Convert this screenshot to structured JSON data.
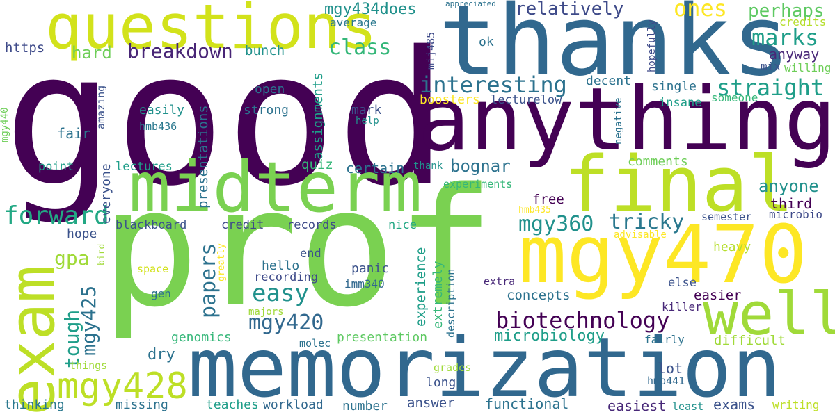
{
  "words": [
    {
      "key": "good",
      "text": "good",
      "color": "#440154"
    },
    {
      "key": "prof",
      "text": "prof",
      "color": "#7ad151"
    },
    {
      "key": "thanks",
      "text": "thanks",
      "color": "#31688e"
    },
    {
      "key": "anything",
      "text": "anything",
      "color": "#440154"
    },
    {
      "key": "memorization",
      "text": "memorization",
      "color": "#31688e"
    },
    {
      "key": "midterm",
      "text": "midterm",
      "color": "#7ad151"
    },
    {
      "key": "questions",
      "text": "questions",
      "color": "#d2e21b"
    },
    {
      "key": "final",
      "text": "final",
      "color": "#bddf26"
    },
    {
      "key": "mgy470",
      "text": "mgy470",
      "color": "#fde725"
    },
    {
      "key": "exam",
      "text": "exam",
      "color": "#bddf26"
    },
    {
      "key": "well",
      "text": "well",
      "color": "#a0da39"
    },
    {
      "key": "mgy428",
      "text": "mgy428",
      "color": "#bddf26"
    },
    {
      "key": "forward",
      "text": "forward",
      "color": "#22a884"
    },
    {
      "key": "interesting",
      "text": "interesting",
      "color": "#2c728e"
    },
    {
      "key": "straight",
      "text": "straight",
      "color": "#1f9e89"
    },
    {
      "key": "marks",
      "text": "marks",
      "color": "#1f9e89"
    },
    {
      "key": "biotechnology",
      "text": "biotechnology",
      "color": "#440154"
    },
    {
      "key": "mgy420",
      "text": "mgy420",
      "color": "#31688e"
    },
    {
      "key": "mgy360",
      "text": "mgy360",
      "color": "#21918c"
    },
    {
      "key": "tricky",
      "text": "tricky",
      "color": "#2a788e"
    },
    {
      "key": "breakdown",
      "text": "breakdown",
      "color": "#482576"
    },
    {
      "key": "class",
      "text": "class",
      "color": "#35b779"
    },
    {
      "key": "relatively",
      "text": "relatively",
      "color": "#3e4a89"
    },
    {
      "key": "ones",
      "text": "ones",
      "color": "#fde725"
    },
    {
      "key": "perhaps",
      "text": "perhaps",
      "color": "#5ec962"
    },
    {
      "key": "mgy434does",
      "text": "mgy434does",
      "color": "#21918c"
    },
    {
      "key": "hard",
      "text": "hard",
      "color": "#6ece58"
    },
    {
      "key": "https",
      "text": "https",
      "color": "#3e4a89"
    },
    {
      "key": "bunch",
      "text": "bunch",
      "color": "#21918c"
    },
    {
      "key": "average",
      "text": "average",
      "color": "#2a788e"
    },
    {
      "key": "appreciated",
      "text": "appreciated",
      "color": "#2c728e"
    },
    {
      "key": "credits",
      "text": "credits",
      "color": "#b5de2b"
    },
    {
      "key": "anyway",
      "text": "anyway",
      "color": "#482878"
    },
    {
      "key": "mix",
      "text": "mix",
      "color": "#3b528b"
    },
    {
      "key": "willing",
      "text": "willing",
      "color": "#6ece58"
    },
    {
      "key": "ok",
      "text": "ok",
      "color": "#2c728e"
    },
    {
      "key": "bognar",
      "text": "bognar",
      "color": "#2c728e"
    },
    {
      "key": "certain",
      "text": "certain",
      "color": "#2c728e"
    },
    {
      "key": "quiz",
      "text": "quiz",
      "color": "#35b779"
    },
    {
      "key": "comments",
      "text": "comments",
      "color": "#6ece58"
    },
    {
      "key": "anyone",
      "text": "anyone",
      "color": "#21918c"
    },
    {
      "key": "third",
      "text": "third",
      "color": "#440154"
    },
    {
      "key": "microbio",
      "text": "microbio",
      "color": "#3e4a89"
    },
    {
      "key": "semester",
      "text": "semester",
      "color": "#3b528b"
    },
    {
      "key": "easy",
      "text": "easy",
      "color": "#21918c"
    },
    {
      "key": "papers",
      "text": "papers",
      "color": "#2c728e"
    },
    {
      "key": "tough",
      "text": "tough",
      "color": "#1f9e89"
    },
    {
      "key": "gpa",
      "text": "gpa",
      "color": "#a0da39"
    },
    {
      "key": "open",
      "text": "open",
      "color": "#2c728e"
    },
    {
      "key": "strong",
      "text": "strong",
      "color": "#2c728e"
    },
    {
      "key": "mark",
      "text": "mark",
      "color": "#3b528b"
    },
    {
      "key": "help",
      "text": "help",
      "color": "#21918c"
    },
    {
      "key": "easily",
      "text": "easily",
      "color": "#21918c"
    },
    {
      "key": "hmb436",
      "text": "hmb436",
      "color": "#2a788e"
    },
    {
      "key": "fair",
      "text": "fair",
      "color": "#2c728e"
    },
    {
      "key": "point",
      "text": "point",
      "color": "#1f9e89"
    },
    {
      "key": "lectures",
      "text": "lectures",
      "color": "#1f9e89"
    },
    {
      "key": "blackboard",
      "text": "blackboard",
      "color": "#3b528b"
    },
    {
      "key": "credit",
      "text": "credit",
      "color": "#3e4a89"
    },
    {
      "key": "records",
      "text": "records",
      "color": "#3e4a89"
    },
    {
      "key": "nice",
      "text": "nice",
      "color": "#22a884"
    },
    {
      "key": "hope",
      "text": "hope",
      "color": "#3b528b"
    },
    {
      "key": "end",
      "text": "end",
      "color": "#3b528b"
    },
    {
      "key": "hello",
      "text": "hello",
      "color": "#2c728e"
    },
    {
      "key": "recording",
      "text": "recording",
      "color": "#3e4a89"
    },
    {
      "key": "panic",
      "text": "panic",
      "color": "#3b528b"
    },
    {
      "key": "imm340",
      "text": "imm340",
      "color": "#31688e"
    },
    {
      "key": "space",
      "text": "space",
      "color": "#d2e21b"
    },
    {
      "key": "gen",
      "text": "gen",
      "color": "#2c728e"
    },
    {
      "key": "majors",
      "text": "majors",
      "color": "#a0da39"
    },
    {
      "key": "genomics",
      "text": "genomics",
      "color": "#35b779"
    },
    {
      "key": "dry",
      "text": "dry",
      "color": "#2c728e"
    },
    {
      "key": "molec",
      "text": "molec",
      "color": "#2c728e"
    },
    {
      "key": "presentation",
      "text": "presentation",
      "color": "#5ec962"
    },
    {
      "key": "microbiology",
      "text": "microbiology",
      "color": "#1f9e89"
    },
    {
      "key": "fairly",
      "text": "fairly",
      "color": "#2c728e"
    },
    {
      "key": "difficult",
      "text": "difficult",
      "color": "#a0da39"
    },
    {
      "key": "lot",
      "text": "lot",
      "color": "#3b528b"
    },
    {
      "key": "hmb441",
      "text": "hmb441",
      "color": "#31688e"
    },
    {
      "key": "long",
      "text": "long",
      "color": "#3b528b"
    },
    {
      "key": "grades",
      "text": "grades",
      "color": "#a0da39"
    },
    {
      "key": "thinking",
      "text": "thinking",
      "color": "#2a788e"
    },
    {
      "key": "missing",
      "text": "missing",
      "color": "#2c728e"
    },
    {
      "key": "teaches",
      "text": "teaches",
      "color": "#1f9e89"
    },
    {
      "key": "workload",
      "text": "workload",
      "color": "#31688e"
    },
    {
      "key": "number",
      "text": "number",
      "color": "#2c728e"
    },
    {
      "key": "answer",
      "text": "answer",
      "color": "#3b528b"
    },
    {
      "key": "functional",
      "text": "functional",
      "color": "#2c728e"
    },
    {
      "key": "easiest",
      "text": "easiest",
      "color": "#482878"
    },
    {
      "key": "least",
      "text": "least",
      "color": "#21918c"
    },
    {
      "key": "exams",
      "text": "exams",
      "color": "#3b528b"
    },
    {
      "key": "writing",
      "text": "writing",
      "color": "#bddf26"
    },
    {
      "key": "things",
      "text": "things",
      "color": "#a0da39"
    },
    {
      "key": "concepts",
      "text": "concepts",
      "color": "#2c728e"
    },
    {
      "key": "free",
      "text": "free",
      "color": "#440154"
    },
    {
      "key": "extra",
      "text": "extra",
      "color": "#482878"
    },
    {
      "key": "else",
      "text": "else",
      "color": "#3b528b"
    },
    {
      "key": "easier",
      "text": "easier",
      "color": "#440154"
    },
    {
      "key": "killer",
      "text": "killer",
      "color": "#482878"
    },
    {
      "key": "heavy",
      "text": "heavy",
      "color": "#b5de2b"
    },
    {
      "key": "advisable",
      "text": "advisable",
      "color": "#fde725"
    },
    {
      "key": "hmb435",
      "text": "hmb435",
      "color": "#fde725"
    },
    {
      "key": "experiments",
      "text": "experiments",
      "color": "#35b779"
    },
    {
      "key": "thank",
      "text": "thank",
      "color": "#21918c"
    },
    {
      "key": "boosters",
      "text": "boosters",
      "color": "#fde725"
    },
    {
      "key": "lecturelow",
      "text": "lecturelow",
      "color": "#3b528b"
    },
    {
      "key": "insane",
      "text": "insane",
      "color": "#1f9e89"
    },
    {
      "key": "someone",
      "text": "someone",
      "color": "#35b779"
    },
    {
      "key": "decent",
      "text": "decent",
      "color": "#2c728e"
    },
    {
      "key": "single",
      "text": "single",
      "color": "#2c728e"
    },
    {
      "key": "mgy425",
      "text": "mgy425",
      "color": "#2c728e"
    },
    {
      "key": "presentations",
      "text": "presentations",
      "color": "#2c728e"
    },
    {
      "key": "assignments",
      "text": "assignments",
      "color": "#1f9e89"
    },
    {
      "key": "everyone",
      "text": "everyone",
      "color": "#3b528b"
    },
    {
      "key": "amazing",
      "text": "amazing",
      "color": "#3b528b"
    },
    {
      "key": "mgy440",
      "text": "mgy440",
      "color": "#6ece58"
    },
    {
      "key": "mij485",
      "text": "mij485",
      "color": "#3e4a89"
    },
    {
      "key": "hopefully",
      "text": "hopefully",
      "color": "#3e4a89"
    },
    {
      "key": "negative",
      "text": "negative",
      "color": "#2c728e"
    },
    {
      "key": "experience",
      "text": "experience",
      "color": "#1f9e89"
    },
    {
      "key": "extremely",
      "text": "extremely",
      "color": "#35b779"
    },
    {
      "key": "description",
      "text": "description",
      "color": "#2c728e"
    },
    {
      "key": "greatly",
      "text": "greatly",
      "color": "#fde725"
    },
    {
      "key": "bird",
      "text": "bird",
      "color": "#a0da39"
    }
  ]
}
